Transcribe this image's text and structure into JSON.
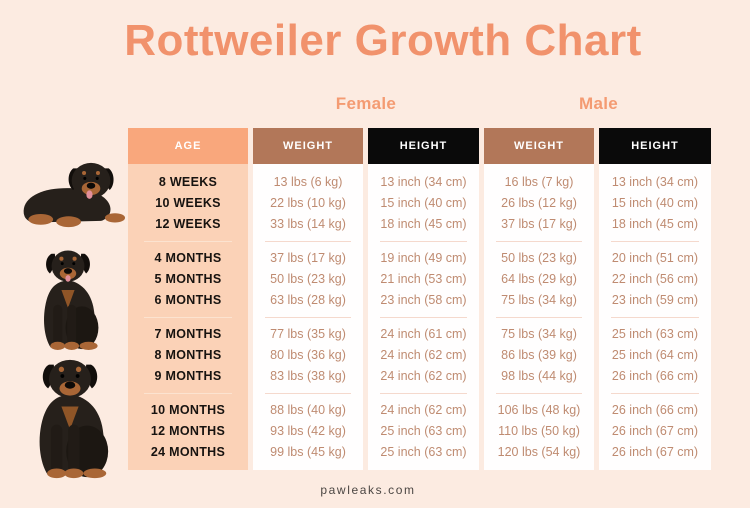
{
  "page": {
    "title": "Rottweiler Growth Chart",
    "footer": "pawleaks.com"
  },
  "colors": {
    "background": "#FCEBE1",
    "accent_coral": "#F1926C",
    "sex_label": "#F49B72",
    "age_header_bg": "#F9A77C",
    "age_column_bg": "#FBD2B7",
    "weight_header_bg": "#B27759",
    "height_header_bg": "#0A0A0A",
    "value_cell_bg": "#FFFEFE",
    "value_text": "#BF8B71",
    "age_text": "#171310",
    "separator": "#F5D9CD",
    "footer_text": "#4B4643"
  },
  "images": [
    {
      "name": "rottweiler-puppy-photo",
      "alt": "Rottweiler puppy lying down"
    },
    {
      "name": "rottweiler-juvenile-photo",
      "alt": "Young Rottweiler sitting"
    },
    {
      "name": "rottweiler-adult-photo",
      "alt": "Adult Rottweiler sitting"
    }
  ],
  "chart_data": {
    "type": "table",
    "title": "Rottweiler Growth Chart",
    "group_headers": [
      "Female",
      "Male"
    ],
    "column_groups": [
      "",
      "Female",
      "Female",
      "Male",
      "Male"
    ],
    "columns": [
      "AGE",
      "WEIGHT",
      "HEIGHT",
      "WEIGHT",
      "HEIGHT"
    ],
    "rows": [
      [
        "8 WEEKS",
        "13 lbs (6 kg)",
        "13 inch (34 cm)",
        "16 lbs (7 kg)",
        "13 inch (34 cm)"
      ],
      [
        "10 WEEKS",
        "22 lbs (10 kg)",
        "15 inch (40 cm)",
        "26 lbs (12 kg)",
        "15 inch (40 cm)"
      ],
      [
        "12 WEEKS",
        "33 lbs (14 kg)",
        "18 inch (45 cm)",
        "37 lbs (17 kg)",
        "18 inch (45 cm)"
      ],
      [
        "4 MONTHS",
        "37 lbs (17 kg)",
        "19 inch (49 cm)",
        "50 lbs (23 kg)",
        "20 inch (51 cm)"
      ],
      [
        "5 MONTHS",
        "50 lbs (23 kg)",
        "21 inch (53 cm)",
        "64 lbs (29 kg)",
        "22 inch (56 cm)"
      ],
      [
        "6 MONTHS",
        "63 lbs (28 kg)",
        "23 inch (58 cm)",
        "75 lbs (34 kg)",
        "23 inch (59 cm)"
      ],
      [
        "7 MONTHS",
        "77 lbs (35 kg)",
        "24 inch (61 cm)",
        "75 lbs (34 kg)",
        "25 inch (63 cm)"
      ],
      [
        "8 MONTHS",
        "80 lbs (36 kg)",
        "24 inch (62 cm)",
        "86 lbs (39 kg)",
        "25 inch (64 cm)"
      ],
      [
        "9 MONTHS",
        "83 lbs (38 kg)",
        "24 inch (62 cm)",
        "98 lbs (44 kg)",
        "26 inch (66 cm)"
      ],
      [
        "10 MONTHS",
        "88 lbs (40 kg)",
        "24 inch (62 cm)",
        "106 lbs (48 kg)",
        "26 inch (66 cm)"
      ],
      [
        "12 MONTHS",
        "93 lbs (42 kg)",
        "25 inch (63 cm)",
        "110 lbs (50 kg)",
        "26 inch (67 cm)"
      ],
      [
        "24 MONTHS",
        "99 lbs (45 kg)",
        "25 inch (63 cm)",
        "120 lbs (54 kg)",
        "26 inch (67 cm)"
      ]
    ],
    "row_groups": [
      [
        0,
        1,
        2
      ],
      [
        3,
        4,
        5
      ],
      [
        6,
        7,
        8
      ],
      [
        9,
        10,
        11
      ]
    ]
  }
}
